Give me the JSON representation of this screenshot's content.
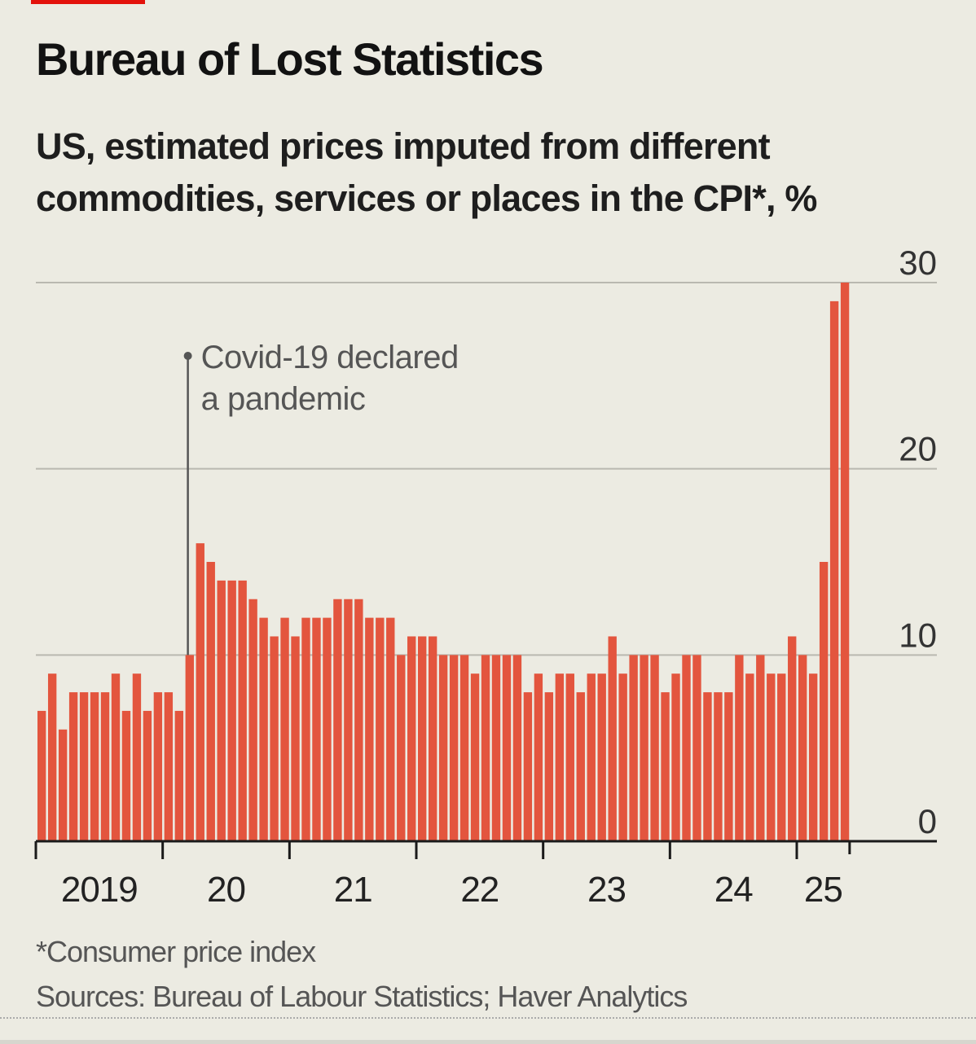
{
  "header": {
    "title": "Bureau of Lost Statistics",
    "subtitle": "US, estimated prices imputed from different commodities, services or places in the CPI*, %"
  },
  "footer": {
    "note": "*Consumer price index",
    "source": "Sources: Bureau of Labour Statistics; Haver Analytics"
  },
  "colors": {
    "bar": "#E3553E",
    "background": "#ECEBE2",
    "accent": "#E3120B"
  },
  "chart_data": {
    "type": "bar",
    "title": "Bureau of Lost Statistics",
    "subtitle": "US, estimated prices imputed from different commodities, services or places in the CPI*, %",
    "xlabel": "",
    "ylabel": "%",
    "ylim": [
      0,
      30
    ],
    "yticks": [
      0,
      10,
      20,
      30
    ],
    "ytick_labels": [
      "0",
      "10",
      "20",
      "30"
    ],
    "y_axis_position": "right",
    "grid": true,
    "frequency": "monthly",
    "start": "2019-01",
    "end": "2025-05",
    "xtick_labels": [
      "2019",
      "20",
      "21",
      "22",
      "23",
      "24",
      "25"
    ],
    "annotation": {
      "text_line1": "Covid-19 declared",
      "text_line2": "a pandemic",
      "date": "2020-03"
    },
    "categories": [
      "2019-01",
      "2019-02",
      "2019-03",
      "2019-04",
      "2019-05",
      "2019-06",
      "2019-07",
      "2019-08",
      "2019-09",
      "2019-10",
      "2019-11",
      "2019-12",
      "2020-01",
      "2020-02",
      "2020-03",
      "2020-04",
      "2020-05",
      "2020-06",
      "2020-07",
      "2020-08",
      "2020-09",
      "2020-10",
      "2020-11",
      "2020-12",
      "2021-01",
      "2021-02",
      "2021-03",
      "2021-04",
      "2021-05",
      "2021-06",
      "2021-07",
      "2021-08",
      "2021-09",
      "2021-10",
      "2021-11",
      "2021-12",
      "2022-01",
      "2022-02",
      "2022-03",
      "2022-04",
      "2022-05",
      "2022-06",
      "2022-07",
      "2022-08",
      "2022-09",
      "2022-10",
      "2022-11",
      "2022-12",
      "2023-01",
      "2023-02",
      "2023-03",
      "2023-04",
      "2023-05",
      "2023-06",
      "2023-07",
      "2023-08",
      "2023-09",
      "2023-10",
      "2023-11",
      "2023-12",
      "2024-01",
      "2024-02",
      "2024-03",
      "2024-04",
      "2024-05",
      "2024-06",
      "2024-07",
      "2024-08",
      "2024-09",
      "2024-10",
      "2024-11",
      "2024-12",
      "2025-01",
      "2025-02",
      "2025-03",
      "2025-04",
      "2025-05"
    ],
    "values": [
      7,
      9,
      6,
      8,
      8,
      8,
      8,
      9,
      7,
      9,
      7,
      8,
      8,
      7,
      10,
      16,
      15,
      14,
      14,
      14,
      13,
      12,
      11,
      12,
      11,
      12,
      12,
      12,
      13,
      13,
      13,
      12,
      12,
      12,
      10,
      11,
      11,
      11,
      10,
      10,
      10,
      9,
      10,
      10,
      10,
      10,
      8,
      9,
      8,
      9,
      9,
      8,
      9,
      9,
      11,
      9,
      10,
      10,
      10,
      8,
      9,
      10,
      10,
      8,
      8,
      8,
      10,
      9,
      10,
      9,
      9,
      11,
      10,
      9,
      15,
      29,
      30
    ]
  }
}
